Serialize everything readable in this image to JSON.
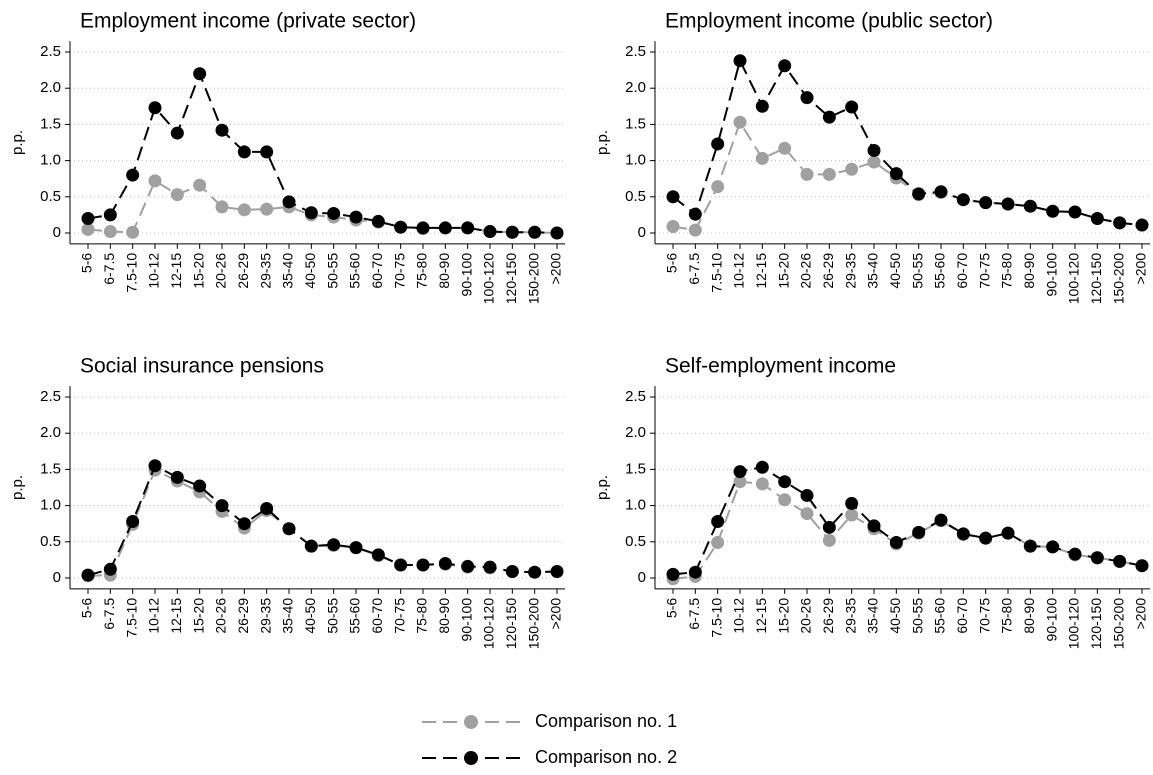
{
  "chart_data": [
    {
      "type": "line",
      "title": "Employment income (private sector)",
      "ylabel": "p.p.",
      "categories": [
        "5-6",
        "6-7.5",
        "7.5-10",
        "10-12",
        "12-15",
        "15-20",
        "20-26",
        "26-29",
        "29-35",
        "35-40",
        "40-50",
        "50-55",
        "55-60",
        "60-70",
        "70-75",
        "75-80",
        "80-90",
        "90-100",
        "100-120",
        "120-150",
        "150-200",
        ">200"
      ],
      "series": [
        {
          "name": "Comparison no. 1",
          "color": "#a0a0a0",
          "values": [
            0.05,
            0.02,
            0.01,
            0.72,
            0.53,
            0.66,
            0.36,
            0.32,
            0.33,
            0.36,
            0.25,
            0.22,
            0.18,
            0.15,
            0.08,
            0.06,
            0.07,
            0.07,
            0.02,
            0.01,
            0.01,
            0.0
          ]
        },
        {
          "name": "Comparison no. 2",
          "color": "#000000",
          "values": [
            0.2,
            0.25,
            0.8,
            1.73,
            1.38,
            2.2,
            1.42,
            1.12,
            1.12,
            0.43,
            0.28,
            0.27,
            0.22,
            0.16,
            0.08,
            0.07,
            0.07,
            0.07,
            0.02,
            0.01,
            0.01,
            0.0
          ]
        }
      ],
      "line_style": "dashed",
      "ylim": [
        -0.15,
        2.65
      ],
      "yticks": [
        0,
        0.5,
        {
          "value": 1,
          "label": "1.0"
        },
        1.5,
        {
          "value": 2,
          "label": "2.0"
        },
        2.5
      ],
      "grid": true
    },
    {
      "type": "line",
      "title": "Employment income (public sector)",
      "ylabel": "p.p.",
      "categories": [
        "5-6",
        "6-7.5",
        "7.5-10",
        "10-12",
        "12-15",
        "15-20",
        "20-26",
        "26-29",
        "29-35",
        "35-40",
        "40-50",
        "50-55",
        "55-60",
        "60-70",
        "70-75",
        "75-80",
        "80-90",
        "90-100",
        "100-120",
        "120-150",
        "150-200",
        ">200"
      ],
      "series": [
        {
          "name": "Comparison no. 1",
          "color": "#a0a0a0",
          "values": [
            0.09,
            0.04,
            0.64,
            1.53,
            1.03,
            1.17,
            0.81,
            0.81,
            0.88,
            0.98,
            0.76,
            0.53,
            0.56,
            0.46,
            0.42,
            0.4,
            0.37,
            0.3,
            0.29,
            0.2,
            0.14,
            0.11
          ]
        },
        {
          "name": "Comparison no. 2",
          "color": "#000000",
          "values": [
            0.5,
            0.26,
            1.23,
            2.38,
            1.75,
            2.31,
            1.87,
            1.6,
            1.74,
            1.14,
            0.82,
            0.54,
            0.57,
            0.46,
            0.42,
            0.4,
            0.37,
            0.3,
            0.29,
            0.2,
            0.14,
            0.11
          ]
        }
      ],
      "line_style": "dashed",
      "ylim": [
        -0.15,
        2.65
      ],
      "yticks": [
        0,
        0.5,
        {
          "value": 1,
          "label": "1.0"
        },
        1.5,
        {
          "value": 2,
          "label": "2.0"
        },
        2.5
      ],
      "grid": true
    },
    {
      "type": "line",
      "title": "Social insurance pensions",
      "ylabel": "p.p.",
      "categories": [
        "5-6",
        "6-7.5",
        "7.5-10",
        "10-12",
        "12-15",
        "15-20",
        "20-26",
        "26-29",
        "29-35",
        "35-40",
        "40-50",
        "50-55",
        "55-60",
        "60-70",
        "70-75",
        "75-80",
        "80-90",
        "90-100",
        "100-120",
        "120-150",
        "150-200",
        ">200"
      ],
      "series": [
        {
          "name": "Comparison no. 1",
          "color": "#a0a0a0",
          "values": [
            0.03,
            0.04,
            0.74,
            1.49,
            1.34,
            1.19,
            0.92,
            0.69,
            0.93,
            0.68,
            0.44,
            0.45,
            0.42,
            0.31,
            0.18,
            0.18,
            0.19,
            0.15,
            0.14,
            0.09,
            0.08,
            0.09
          ]
        },
        {
          "name": "Comparison no. 2",
          "color": "#000000",
          "values": [
            0.04,
            0.12,
            0.78,
            1.55,
            1.39,
            1.27,
            1.0,
            0.75,
            0.96,
            0.68,
            0.44,
            0.46,
            0.42,
            0.32,
            0.18,
            0.18,
            0.2,
            0.16,
            0.15,
            0.09,
            0.08,
            0.09
          ]
        }
      ],
      "line_style": "dashed",
      "ylim": [
        -0.15,
        2.65
      ],
      "yticks": [
        0,
        0.5,
        {
          "value": 1,
          "label": "1.0"
        },
        1.5,
        {
          "value": 2,
          "label": "2.0"
        },
        2.5
      ],
      "grid": true
    },
    {
      "type": "line",
      "title": "Self-employment income",
      "ylabel": "p.p.",
      "categories": [
        "5-6",
        "6-7.5",
        "7.5-10",
        "10-12",
        "12-15",
        "15-20",
        "20-26",
        "26-29",
        "29-35",
        "35-40",
        "40-50",
        "50-55",
        "55-60",
        "60-70",
        "70-75",
        "75-80",
        "80-90",
        "90-100",
        "100-120",
        "120-150",
        "150-200",
        ">200"
      ],
      "series": [
        {
          "name": "Comparison no. 1",
          "color": "#a0a0a0",
          "values": [
            -0.01,
            0.02,
            0.49,
            1.33,
            1.3,
            1.08,
            0.89,
            0.52,
            0.87,
            0.68,
            0.47,
            0.62,
            0.79,
            0.6,
            0.55,
            0.62,
            0.44,
            0.43,
            0.32,
            0.28,
            0.23,
            0.17
          ]
        },
        {
          "name": "Comparison no. 2",
          "color": "#000000",
          "values": [
            0.05,
            0.08,
            0.78,
            1.47,
            1.53,
            1.33,
            1.14,
            0.7,
            1.03,
            0.72,
            0.49,
            0.63,
            0.8,
            0.61,
            0.55,
            0.62,
            0.44,
            0.43,
            0.33,
            0.28,
            0.23,
            0.17
          ]
        }
      ],
      "line_style": "dashed",
      "ylim": [
        -0.15,
        2.65
      ],
      "yticks": [
        0,
        0.5,
        {
          "value": 1,
          "label": "1.0"
        },
        1.5,
        {
          "value": 2,
          "label": "2.0"
        },
        2.5
      ],
      "grid": true
    }
  ]
}
